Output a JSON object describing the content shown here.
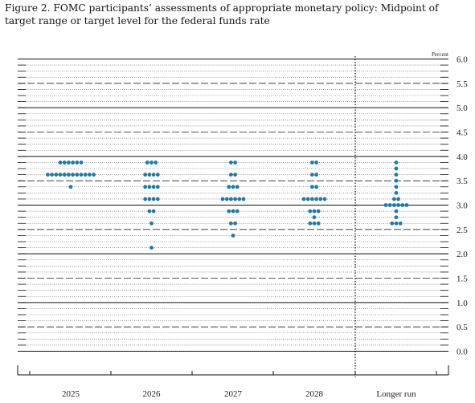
{
  "figure": {
    "title": "Figure 2. FOMC participants’ assessments of appropriate monetary policy: Midpoint of target range or target level for the federal funds rate"
  },
  "chart_data": {
    "type": "scatter",
    "title": "Figure 2. FOMC participants’ assessments of appropriate monetary policy: Midpoint of target range or target level for the federal funds rate",
    "unit_label": "Percent",
    "categories": [
      "2025",
      "2026",
      "2027",
      "2028",
      "Longer run"
    ],
    "ylim": [
      0,
      6
    ],
    "yticks": [
      "0.0",
      "0.5",
      "1.0",
      "1.5",
      "2.0",
      "2.5",
      "3.0",
      "3.5",
      "4.0",
      "4.5",
      "5.0",
      "5.5",
      "6.0"
    ],
    "dot_color": "#1f7aa5",
    "grid": true,
    "points": [
      {
        "category": "2025",
        "counts": [
          {
            "y": 3.875,
            "n": 6
          },
          {
            "y": 3.625,
            "n": 12
          },
          {
            "y": 3.375,
            "n": 1
          }
        ]
      },
      {
        "category": "2026",
        "counts": [
          {
            "y": 3.875,
            "n": 3
          },
          {
            "y": 3.625,
            "n": 4
          },
          {
            "y": 3.375,
            "n": 4
          },
          {
            "y": 3.125,
            "n": 4
          },
          {
            "y": 2.875,
            "n": 2
          },
          {
            "y": 2.625,
            "n": 1
          },
          {
            "y": 2.125,
            "n": 1
          }
        ]
      },
      {
        "category": "2027",
        "counts": [
          {
            "y": 3.875,
            "n": 2
          },
          {
            "y": 3.625,
            "n": 2
          },
          {
            "y": 3.375,
            "n": 3
          },
          {
            "y": 3.125,
            "n": 6
          },
          {
            "y": 2.875,
            "n": 3
          },
          {
            "y": 2.625,
            "n": 2
          },
          {
            "y": 2.375,
            "n": 1
          }
        ]
      },
      {
        "category": "2028",
        "counts": [
          {
            "y": 3.875,
            "n": 2
          },
          {
            "y": 3.625,
            "n": 2
          },
          {
            "y": 3.375,
            "n": 2
          },
          {
            "y": 3.125,
            "n": 6
          },
          {
            "y": 2.875,
            "n": 3
          },
          {
            "y": 2.75,
            "n": 1
          },
          {
            "y": 2.625,
            "n": 3
          }
        ]
      },
      {
        "category": "Longer run",
        "counts": [
          {
            "y": 3.875,
            "n": 1
          },
          {
            "y": 3.75,
            "n": 1
          },
          {
            "y": 3.625,
            "n": 1
          },
          {
            "y": 3.5,
            "n": 1
          },
          {
            "y": 3.375,
            "n": 1
          },
          {
            "y": 3.25,
            "n": 1
          },
          {
            "y": 3.125,
            "n": 2
          },
          {
            "y": 3.0,
            "n": 6
          },
          {
            "y": 2.875,
            "n": 1
          },
          {
            "y": 2.75,
            "n": 1
          },
          {
            "y": 2.625,
            "n": 3
          }
        ]
      }
    ]
  }
}
